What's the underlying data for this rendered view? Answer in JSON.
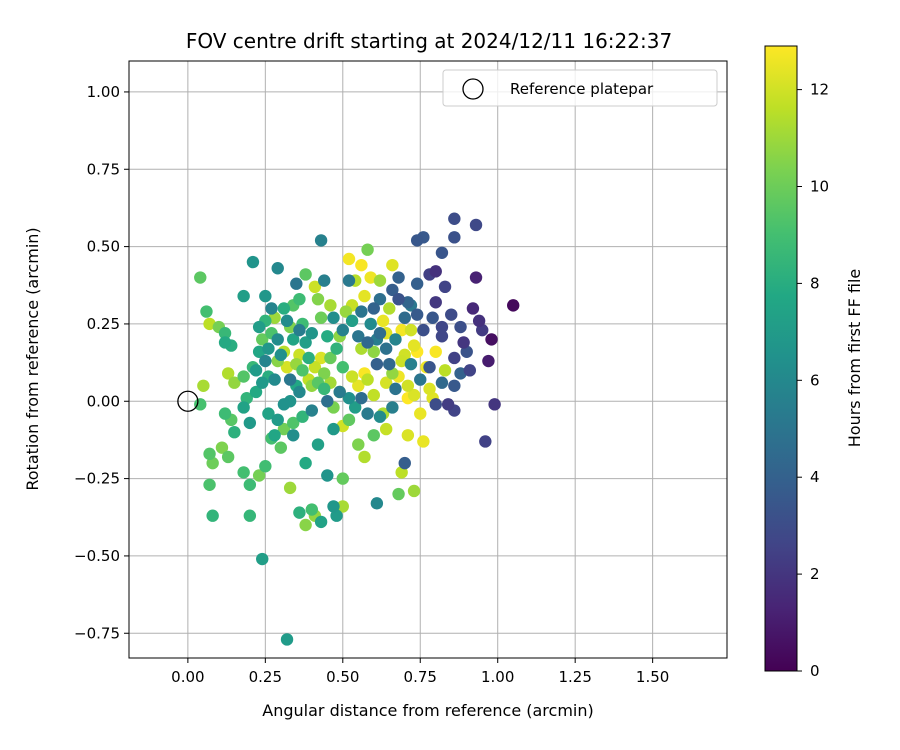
{
  "chart_data": {
    "type": "scatter",
    "title": "FOV centre drift starting at 2024/12/11 16:22:37",
    "xlabel": "Angular distance from reference (arcmin)",
    "ylabel": "Rotation from reference (arcmin)",
    "xlim": [
      -0.19,
      1.74
    ],
    "ylim": [
      -0.83,
      1.1
    ],
    "xticks": [
      0.0,
      0.25,
      0.5,
      0.75,
      1.0,
      1.25,
      1.5
    ],
    "xtick_labels": [
      "0.00",
      "0.25",
      "0.50",
      "0.75",
      "1.00",
      "1.25",
      "1.50"
    ],
    "yticks": [
      1.0,
      0.75,
      0.5,
      0.25,
      0.0,
      -0.25,
      -0.5,
      -0.75
    ],
    "ytick_labels": [
      "1.00",
      "0.75",
      "0.50",
      "0.25",
      "0.00",
      "−0.25",
      "−0.50",
      "−0.75"
    ],
    "grid": true,
    "legend": {
      "position": "upper-right",
      "entries": [
        "Reference platepar"
      ]
    },
    "reference_point": {
      "x": 0.0,
      "y": 0.0
    },
    "colorbar": {
      "label": "Hours from first FF file",
      "range": [
        0,
        12.9
      ],
      "ticks": [
        0,
        2,
        4,
        6,
        8,
        10,
        12
      ],
      "colormap": "viridis"
    },
    "points": [
      {
        "x": 1.05,
        "y": 0.31,
        "h": 0.3
      },
      {
        "x": 0.98,
        "y": 0.2,
        "h": 0.5
      },
      {
        "x": 0.97,
        "y": 0.13,
        "h": 1.0
      },
      {
        "x": 0.99,
        "y": -0.01,
        "h": 2.0
      },
      {
        "x": 0.96,
        "y": -0.13,
        "h": 2.5
      },
      {
        "x": 0.92,
        "y": 0.3,
        "h": 1.5
      },
      {
        "x": 0.94,
        "y": 0.26,
        "h": 1.8
      },
      {
        "x": 0.95,
        "y": 0.23,
        "h": 2.2
      },
      {
        "x": 0.93,
        "y": 0.4,
        "h": 1.2
      },
      {
        "x": 0.93,
        "y": 0.57,
        "h": 2.8
      },
      {
        "x": 0.86,
        "y": 0.59,
        "h": 3.0
      },
      {
        "x": 0.86,
        "y": 0.53,
        "h": 3.2
      },
      {
        "x": 0.82,
        "y": 0.48,
        "h": 3.4
      },
      {
        "x": 0.8,
        "y": 0.42,
        "h": 1.8
      },
      {
        "x": 0.78,
        "y": 0.41,
        "h": 2.4
      },
      {
        "x": 0.76,
        "y": 0.53,
        "h": 3.6
      },
      {
        "x": 0.74,
        "y": 0.52,
        "h": 3.5
      },
      {
        "x": 0.83,
        "y": 0.37,
        "h": 2.6
      },
      {
        "x": 0.8,
        "y": 0.32,
        "h": 2.1
      },
      {
        "x": 0.85,
        "y": 0.28,
        "h": 2.9
      },
      {
        "x": 0.82,
        "y": 0.21,
        "h": 2.7
      },
      {
        "x": 0.88,
        "y": 0.24,
        "h": 3.1
      },
      {
        "x": 0.86,
        "y": 0.14,
        "h": 2.5
      },
      {
        "x": 0.84,
        "y": -0.01,
        "h": 2.3
      },
      {
        "x": 0.86,
        "y": -0.03,
        "h": 2.6
      },
      {
        "x": 0.8,
        "y": -0.01,
        "h": 3.0
      },
      {
        "x": 0.78,
        "y": 0.11,
        "h": 3.4
      },
      {
        "x": 0.74,
        "y": 0.38,
        "h": 3.9
      },
      {
        "x": 0.71,
        "y": 0.32,
        "h": 4.2
      },
      {
        "x": 0.68,
        "y": 0.4,
        "h": 4.0
      },
      {
        "x": 0.66,
        "y": 0.36,
        "h": 3.8
      },
      {
        "x": 0.6,
        "y": 0.3,
        "h": 4.1
      },
      {
        "x": 0.62,
        "y": 0.22,
        "h": 4.6
      },
      {
        "x": 0.58,
        "y": 0.19,
        "h": 4.4
      },
      {
        "x": 0.55,
        "y": 0.21,
        "h": 5.0
      },
      {
        "x": 0.7,
        "y": -0.2,
        "h": 3.8
      },
      {
        "x": 0.61,
        "y": -0.33,
        "h": 6.0
      },
      {
        "x": 0.52,
        "y": 0.39,
        "h": 5.2
      },
      {
        "x": 0.43,
        "y": 0.52,
        "h": 5.6
      },
      {
        "x": 0.44,
        "y": 0.39,
        "h": 5.5
      },
      {
        "x": 0.35,
        "y": 0.38,
        "h": 5.0
      },
      {
        "x": 0.29,
        "y": 0.43,
        "h": 6.0
      },
      {
        "x": 0.21,
        "y": 0.45,
        "h": 6.6
      },
      {
        "x": 0.18,
        "y": 0.34,
        "h": 7.2
      },
      {
        "x": 0.25,
        "y": 0.34,
        "h": 6.8
      },
      {
        "x": 0.27,
        "y": 0.3,
        "h": 5.8
      },
      {
        "x": 0.32,
        "y": 0.26,
        "h": 6.2
      },
      {
        "x": 0.36,
        "y": 0.23,
        "h": 5.4
      },
      {
        "x": 0.38,
        "y": 0.19,
        "h": 7.2
      },
      {
        "x": 0.3,
        "y": 0.15,
        "h": 6.4
      },
      {
        "x": 0.25,
        "y": 0.13,
        "h": 5.8
      },
      {
        "x": 0.22,
        "y": 0.1,
        "h": 7.0
      },
      {
        "x": 0.28,
        "y": 0.07,
        "h": 6.1
      },
      {
        "x": 0.33,
        "y": 0.07,
        "h": 5.1
      },
      {
        "x": 0.36,
        "y": 0.03,
        "h": 6.0
      },
      {
        "x": 0.31,
        "y": -0.01,
        "h": 6.5
      },
      {
        "x": 0.26,
        "y": -0.04,
        "h": 7.4
      },
      {
        "x": 0.2,
        "y": -0.07,
        "h": 6.9
      },
      {
        "x": 0.28,
        "y": -0.11,
        "h": 7.6
      },
      {
        "x": 0.34,
        "y": -0.11,
        "h": 6.3
      },
      {
        "x": 0.4,
        "y": -0.03,
        "h": 5.6
      },
      {
        "x": 0.45,
        "y": 0.0,
        "h": 4.7
      },
      {
        "x": 0.49,
        "y": 0.03,
        "h": 5.3
      },
      {
        "x": 0.52,
        "y": 0.01,
        "h": 6.4
      },
      {
        "x": 0.47,
        "y": -0.09,
        "h": 6.9
      },
      {
        "x": 0.42,
        "y": -0.14,
        "h": 7.3
      },
      {
        "x": 0.38,
        "y": -0.2,
        "h": 7.8
      },
      {
        "x": 0.45,
        "y": -0.24,
        "h": 6.6
      },
      {
        "x": 0.48,
        "y": -0.37,
        "h": 7.0
      },
      {
        "x": 0.43,
        "y": -0.39,
        "h": 7.4
      },
      {
        "x": 0.36,
        "y": -0.36,
        "h": 8.2
      },
      {
        "x": 0.4,
        "y": -0.35,
        "h": 9.0
      },
      {
        "x": 0.47,
        "y": -0.34,
        "h": 6.8
      },
      {
        "x": 0.32,
        "y": -0.77,
        "h": 7.0
      },
      {
        "x": 0.24,
        "y": -0.51,
        "h": 7.2
      },
      {
        "x": 0.2,
        "y": -0.37,
        "h": 8.5
      },
      {
        "x": 0.08,
        "y": -0.37,
        "h": 8.4
      },
      {
        "x": 0.07,
        "y": -0.27,
        "h": 9.2
      },
      {
        "x": 0.07,
        "y": -0.17,
        "h": 9.4
      },
      {
        "x": 0.08,
        "y": -0.2,
        "h": 10.0
      },
      {
        "x": 0.11,
        "y": -0.15,
        "h": 10.4
      },
      {
        "x": 0.13,
        "y": -0.18,
        "h": 9.6
      },
      {
        "x": 0.18,
        "y": -0.23,
        "h": 9.0
      },
      {
        "x": 0.2,
        "y": -0.27,
        "h": 8.8
      },
      {
        "x": 0.23,
        "y": -0.24,
        "h": 10.2
      },
      {
        "x": 0.25,
        "y": -0.21,
        "h": 8.9
      },
      {
        "x": 0.3,
        "y": -0.15,
        "h": 9.6
      },
      {
        "x": 0.33,
        "y": -0.28,
        "h": 11.0
      },
      {
        "x": 0.38,
        "y": -0.4,
        "h": 10.6
      },
      {
        "x": 0.41,
        "y": -0.37,
        "h": 10.8
      },
      {
        "x": 0.5,
        "y": -0.34,
        "h": 11.2
      },
      {
        "x": 0.5,
        "y": -0.25,
        "h": 9.8
      },
      {
        "x": 0.55,
        "y": -0.14,
        "h": 10.4
      },
      {
        "x": 0.57,
        "y": -0.18,
        "h": 11.4
      },
      {
        "x": 0.6,
        "y": -0.11,
        "h": 9.6
      },
      {
        "x": 0.64,
        "y": -0.09,
        "h": 11.8
      },
      {
        "x": 0.68,
        "y": -0.3,
        "h": 9.8
      },
      {
        "x": 0.69,
        "y": -0.23,
        "h": 11.6
      },
      {
        "x": 0.73,
        "y": -0.29,
        "h": 11.0
      },
      {
        "x": 0.71,
        "y": -0.11,
        "h": 12.2
      },
      {
        "x": 0.76,
        "y": -0.13,
        "h": 12.5
      },
      {
        "x": 0.79,
        "y": 0.01,
        "h": 12.3
      },
      {
        "x": 0.71,
        "y": 0.05,
        "h": 12.0
      },
      {
        "x": 0.77,
        "y": 0.11,
        "h": 12.6
      },
      {
        "x": 0.73,
        "y": 0.18,
        "h": 12.4
      },
      {
        "x": 0.69,
        "y": 0.23,
        "h": 12.7
      },
      {
        "x": 0.69,
        "y": 0.13,
        "h": 11.9
      },
      {
        "x": 0.66,
        "y": 0.09,
        "h": 10.8
      },
      {
        "x": 0.64,
        "y": 0.06,
        "h": 12.1
      },
      {
        "x": 0.6,
        "y": 0.02,
        "h": 11.7
      },
      {
        "x": 0.57,
        "y": 0.09,
        "h": 12.8
      },
      {
        "x": 0.56,
        "y": 0.17,
        "h": 11.3
      },
      {
        "x": 0.6,
        "y": 0.16,
        "h": 10.7
      },
      {
        "x": 0.63,
        "y": 0.26,
        "h": 12.5
      },
      {
        "x": 0.65,
        "y": 0.3,
        "h": 11.4
      },
      {
        "x": 0.72,
        "y": 0.23,
        "h": 12.0
      },
      {
        "x": 0.8,
        "y": 0.16,
        "h": 12.8
      },
      {
        "x": 0.83,
        "y": 0.1,
        "h": 11.6
      },
      {
        "x": 0.78,
        "y": 0.04,
        "h": 12.2
      },
      {
        "x": 0.71,
        "y": 0.01,
        "h": 12.9
      },
      {
        "x": 0.59,
        "y": 0.4,
        "h": 12.6
      },
      {
        "x": 0.57,
        "y": 0.34,
        "h": 12.4
      },
      {
        "x": 0.56,
        "y": 0.44,
        "h": 12.8
      },
      {
        "x": 0.53,
        "y": 0.31,
        "h": 11.8
      },
      {
        "x": 0.51,
        "y": 0.29,
        "h": 10.9
      },
      {
        "x": 0.52,
        "y": 0.46,
        "h": 12.7
      },
      {
        "x": 0.58,
        "y": 0.49,
        "h": 10.2
      },
      {
        "x": 0.54,
        "y": 0.39,
        "h": 11.5
      },
      {
        "x": 0.62,
        "y": 0.39,
        "h": 11.0
      },
      {
        "x": 0.66,
        "y": 0.44,
        "h": 12.3
      },
      {
        "x": 0.46,
        "y": 0.31,
        "h": 11.2
      },
      {
        "x": 0.42,
        "y": 0.33,
        "h": 10.5
      },
      {
        "x": 0.43,
        "y": 0.27,
        "h": 10.0
      },
      {
        "x": 0.41,
        "y": 0.37,
        "h": 11.9
      },
      {
        "x": 0.38,
        "y": 0.41,
        "h": 9.6
      },
      {
        "x": 0.36,
        "y": 0.33,
        "h": 8.8
      },
      {
        "x": 0.34,
        "y": 0.31,
        "h": 9.4
      },
      {
        "x": 0.33,
        "y": 0.24,
        "h": 10.4
      },
      {
        "x": 0.28,
        "y": 0.27,
        "h": 11.0
      },
      {
        "x": 0.27,
        "y": 0.22,
        "h": 9.2
      },
      {
        "x": 0.25,
        "y": 0.26,
        "h": 8.4
      },
      {
        "x": 0.24,
        "y": 0.2,
        "h": 9.8
      },
      {
        "x": 0.23,
        "y": 0.16,
        "h": 7.6
      },
      {
        "x": 0.21,
        "y": 0.11,
        "h": 8.6
      },
      {
        "x": 0.18,
        "y": 0.08,
        "h": 9.4
      },
      {
        "x": 0.15,
        "y": 0.06,
        "h": 10.8
      },
      {
        "x": 0.13,
        "y": 0.09,
        "h": 11.4
      },
      {
        "x": 0.12,
        "y": 0.19,
        "h": 7.8
      },
      {
        "x": 0.14,
        "y": 0.18,
        "h": 8.0
      },
      {
        "x": 0.12,
        "y": 0.22,
        "h": 8.6
      },
      {
        "x": 0.1,
        "y": 0.24,
        "h": 10.2
      },
      {
        "x": 0.07,
        "y": 0.25,
        "h": 11.6
      },
      {
        "x": 0.06,
        "y": 0.29,
        "h": 9.0
      },
      {
        "x": 0.04,
        "y": 0.4,
        "h": 9.6
      },
      {
        "x": 0.05,
        "y": 0.05,
        "h": 11.2
      },
      {
        "x": 0.04,
        "y": -0.01,
        "h": 9.1
      },
      {
        "x": 0.12,
        "y": -0.04,
        "h": 8.8
      },
      {
        "x": 0.14,
        "y": -0.06,
        "h": 9.5
      },
      {
        "x": 0.15,
        "y": -0.1,
        "h": 8.2
      },
      {
        "x": 0.18,
        "y": -0.02,
        "h": 7.4
      },
      {
        "x": 0.19,
        "y": 0.01,
        "h": 8.4
      },
      {
        "x": 0.22,
        "y": 0.03,
        "h": 7.8
      },
      {
        "x": 0.24,
        "y": 0.06,
        "h": 6.9
      },
      {
        "x": 0.26,
        "y": 0.08,
        "h": 8.0
      },
      {
        "x": 0.29,
        "y": 0.13,
        "h": 10.6
      },
      {
        "x": 0.31,
        "y": 0.16,
        "h": 11.5
      },
      {
        "x": 0.32,
        "y": 0.11,
        "h": 12.1
      },
      {
        "x": 0.35,
        "y": 0.12,
        "h": 10.9
      },
      {
        "x": 0.37,
        "y": 0.1,
        "h": 9.3
      },
      {
        "x": 0.39,
        "y": 0.14,
        "h": 8.1
      },
      {
        "x": 0.41,
        "y": 0.11,
        "h": 11.8
      },
      {
        "x": 0.44,
        "y": 0.09,
        "h": 10.4
      },
      {
        "x": 0.46,
        "y": 0.14,
        "h": 9.9
      },
      {
        "x": 0.48,
        "y": 0.17,
        "h": 8.3
      },
      {
        "x": 0.49,
        "y": 0.21,
        "h": 10.7
      },
      {
        "x": 0.5,
        "y": 0.11,
        "h": 9.0
      },
      {
        "x": 0.53,
        "y": 0.08,
        "h": 11.9
      },
      {
        "x": 0.55,
        "y": 0.05,
        "h": 12.4
      },
      {
        "x": 0.54,
        "y": -0.02,
        "h": 7.1
      },
      {
        "x": 0.52,
        "y": -0.06,
        "h": 9.7
      },
      {
        "x": 0.5,
        "y": -0.08,
        "h": 12.0
      },
      {
        "x": 0.47,
        "y": -0.02,
        "h": 10.3
      },
      {
        "x": 0.44,
        "y": 0.04,
        "h": 8.6
      },
      {
        "x": 0.42,
        "y": 0.06,
        "h": 9.5
      },
      {
        "x": 0.4,
        "y": 0.05,
        "h": 10.8
      },
      {
        "x": 0.37,
        "y": -0.05,
        "h": 8.4
      },
      {
        "x": 0.34,
        "y": -0.07,
        "h": 9.3
      },
      {
        "x": 0.31,
        "y": -0.09,
        "h": 10.1
      },
      {
        "x": 0.27,
        "y": -0.12,
        "h": 9.0
      },
      {
        "x": 0.29,
        "y": -0.06,
        "h": 7.0
      },
      {
        "x": 0.33,
        "y": 0.0,
        "h": 6.6
      },
      {
        "x": 0.35,
        "y": 0.05,
        "h": 7.7
      },
      {
        "x": 0.26,
        "y": 0.17,
        "h": 6.8
      },
      {
        "x": 0.23,
        "y": 0.24,
        "h": 7.1
      },
      {
        "x": 0.29,
        "y": 0.2,
        "h": 6.2
      },
      {
        "x": 0.31,
        "y": 0.3,
        "h": 8.0
      },
      {
        "x": 0.34,
        "y": 0.2,
        "h": 7.5
      },
      {
        "x": 0.37,
        "y": 0.25,
        "h": 8.8
      },
      {
        "x": 0.4,
        "y": 0.22,
        "h": 6.7
      },
      {
        "x": 0.45,
        "y": 0.21,
        "h": 7.9
      },
      {
        "x": 0.47,
        "y": 0.27,
        "h": 6.3
      },
      {
        "x": 0.5,
        "y": 0.23,
        "h": 5.6
      },
      {
        "x": 0.53,
        "y": 0.26,
        "h": 7.2
      },
      {
        "x": 0.56,
        "y": 0.29,
        "h": 5.0
      },
      {
        "x": 0.59,
        "y": 0.25,
        "h": 6.1
      },
      {
        "x": 0.61,
        "y": 0.2,
        "h": 5.4
      },
      {
        "x": 0.64,
        "y": 0.17,
        "h": 4.8
      },
      {
        "x": 0.67,
        "y": 0.2,
        "h": 5.8
      },
      {
        "x": 0.7,
        "y": 0.27,
        "h": 4.5
      },
      {
        "x": 0.72,
        "y": 0.31,
        "h": 5.1
      },
      {
        "x": 0.74,
        "y": 0.28,
        "h": 3.7
      },
      {
        "x": 0.76,
        "y": 0.23,
        "h": 3.1
      },
      {
        "x": 0.79,
        "y": 0.27,
        "h": 3.5
      },
      {
        "x": 0.82,
        "y": 0.24,
        "h": 2.7
      },
      {
        "x": 0.89,
        "y": 0.19,
        "h": 2.0
      },
      {
        "x": 0.91,
        "y": 0.1,
        "h": 2.6
      },
      {
        "x": 0.9,
        "y": 0.16,
        "h": 3.3
      },
      {
        "x": 0.88,
        "y": 0.09,
        "h": 4.0
      },
      {
        "x": 0.86,
        "y": 0.05,
        "h": 3.6
      },
      {
        "x": 0.82,
        "y": 0.06,
        "h": 4.4
      },
      {
        "x": 0.75,
        "y": 0.07,
        "h": 5.0
      },
      {
        "x": 0.72,
        "y": 0.12,
        "h": 5.6
      },
      {
        "x": 0.67,
        "y": 0.04,
        "h": 4.9
      },
      {
        "x": 0.66,
        "y": -0.02,
        "h": 5.5
      },
      {
        "x": 0.62,
        "y": -0.05,
        "h": 6.2
      },
      {
        "x": 0.58,
        "y": -0.04,
        "h": 5.3
      },
      {
        "x": 0.56,
        "y": 0.01,
        "h": 4.6
      },
      {
        "x": 0.61,
        "y": 0.12,
        "h": 3.9
      },
      {
        "x": 0.65,
        "y": 0.12,
        "h": 4.3
      },
      {
        "x": 0.68,
        "y": 0.33,
        "h": 3.3
      },
      {
        "x": 0.62,
        "y": 0.33,
        "h": 4.7
      },
      {
        "x": 0.68,
        "y": 0.08,
        "h": 12.6
      },
      {
        "x": 0.74,
        "y": 0.16,
        "h": 12.9
      },
      {
        "x": 0.75,
        "y": -0.04,
        "h": 12.5
      },
      {
        "x": 0.73,
        "y": 0.02,
        "h": 12.2
      },
      {
        "x": 0.7,
        "y": 0.15,
        "h": 12.0
      },
      {
        "x": 0.64,
        "y": 0.22,
        "h": 12.3
      },
      {
        "x": 0.58,
        "y": 0.07,
        "h": 11.6
      },
      {
        "x": 0.49,
        "y": 0.03,
        "h": 11.4
      },
      {
        "x": 0.46,
        "y": 0.06,
        "h": 11.1
      },
      {
        "x": 0.43,
        "y": 0.14,
        "h": 12.2
      },
      {
        "x": 0.39,
        "y": 0.07,
        "h": 11.7
      },
      {
        "x": 0.36,
        "y": 0.15,
        "h": 11.9
      },
      {
        "x": 0.63,
        "y": -0.04,
        "h": 11.3
      }
    ]
  }
}
